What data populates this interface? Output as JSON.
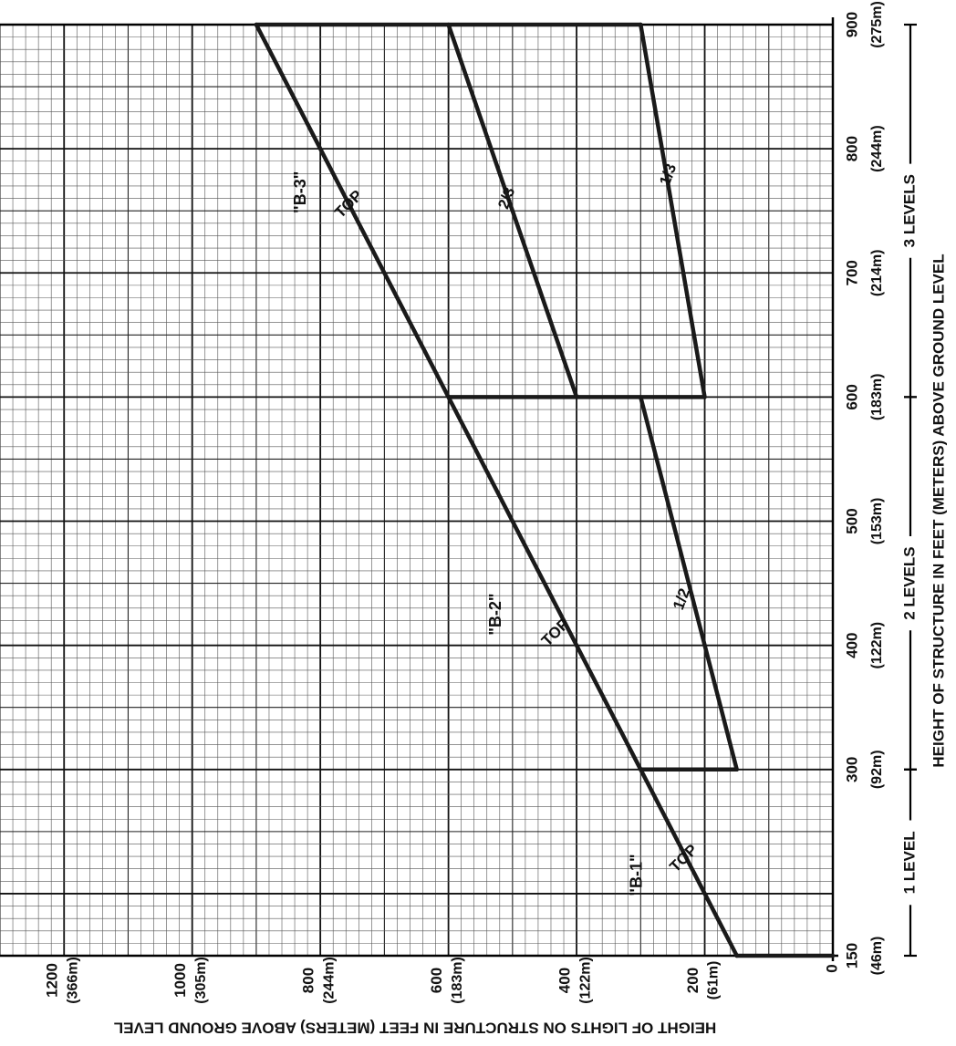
{
  "chart_data": {
    "type": "line",
    "orientation": "rotated-90",
    "xlabel": "HEIGHT OF STRUCTURE IN FEET (METERS) ABOVE GROUND LEVEL",
    "ylabel": "HEIGHT OF LIGHTS ON STRUCTURE IN FEET (METERS) ABOVE GROUND LEVEL",
    "xlim": [
      150,
      900
    ],
    "ylim": [
      0,
      1300
    ],
    "grid": true,
    "x_ticks": [
      {
        "value": 150,
        "label": "150",
        "sublabel": "(46m)"
      },
      {
        "value": 300,
        "label": "300",
        "sublabel": "(92m)"
      },
      {
        "value": 400,
        "label": "400",
        "sublabel": "(122m)"
      },
      {
        "value": 500,
        "label": "500",
        "sublabel": "(153m)"
      },
      {
        "value": 600,
        "label": "600",
        "sublabel": "(183m)"
      },
      {
        "value": 700,
        "label": "700",
        "sublabel": "(214m)"
      },
      {
        "value": 800,
        "label": "800",
        "sublabel": "(244m)"
      },
      {
        "value": 900,
        "label": "900",
        "sublabel": "(275m)"
      }
    ],
    "y_ticks": [
      {
        "value": 0,
        "label": "0",
        "sublabel": ""
      },
      {
        "value": 200,
        "label": "200",
        "sublabel": "(61m)"
      },
      {
        "value": 400,
        "label": "400",
        "sublabel": "(122m)"
      },
      {
        "value": 600,
        "label": "600",
        "sublabel": "(183m)"
      },
      {
        "value": 800,
        "label": "800",
        "sublabel": "(244m)"
      },
      {
        "value": 1000,
        "label": "1000",
        "sublabel": "(305m)"
      },
      {
        "value": 1200,
        "label": "1200",
        "sublabel": "(366m)"
      }
    ],
    "level_ranges": [
      {
        "label": "1 LEVEL",
        "from": 150,
        "to": 300
      },
      {
        "label": "2 LEVELS",
        "from": 300,
        "to": 600
      },
      {
        "label": "3 LEVELS",
        "from": 600,
        "to": 900
      }
    ],
    "series": [
      {
        "name": "TOP",
        "points": [
          [
            150,
            150
          ],
          [
            300,
            300
          ],
          [
            600,
            600
          ],
          [
            900,
            900
          ]
        ]
      },
      {
        "name": "1/2",
        "points": [
          [
            300,
            150
          ],
          [
            600,
            300
          ]
        ]
      },
      {
        "name": "2/3",
        "points": [
          [
            600,
            400
          ],
          [
            900,
            600
          ]
        ]
      },
      {
        "name": "1/3",
        "points": [
          [
            600,
            200
          ],
          [
            900,
            300
          ]
        ]
      }
    ],
    "vertical_segments": [
      {
        "x": 150,
        "y": [
          0,
          150
        ]
      },
      {
        "x": 300,
        "y": [
          150,
          300
        ]
      },
      {
        "x": 600,
        "y": [
          200,
          600
        ]
      },
      {
        "x": 900,
        "y": [
          300,
          900
        ]
      }
    ],
    "annotations": [
      {
        "text": "\"B-1\"",
        "x": 215,
        "y": 305
      },
      {
        "text": "TOP",
        "x": 228,
        "y": 232
      },
      {
        "text": "\"B-2\"",
        "x": 425,
        "y": 525
      },
      {
        "text": "TOP",
        "x": 410,
        "y": 432
      },
      {
        "text": "\"B-3\"",
        "x": 765,
        "y": 830
      },
      {
        "text": "TOP",
        "x": 755,
        "y": 755
      },
      {
        "text": "1/2",
        "x": 437,
        "y": 235
      },
      {
        "text": "2/3",
        "x": 760,
        "y": 508
      },
      {
        "text": "1/3",
        "x": 779,
        "y": 256
      }
    ]
  }
}
